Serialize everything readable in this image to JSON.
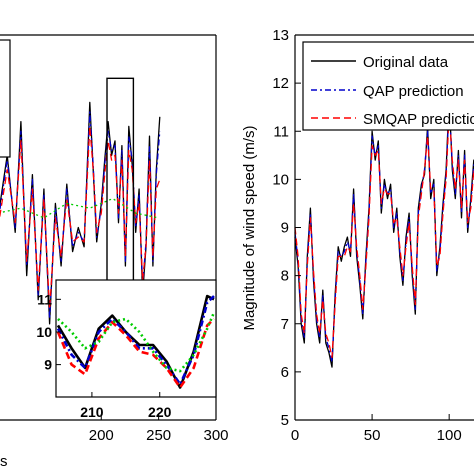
{
  "chart_data": [
    {
      "type": "line",
      "xlabel_fragment": "s",
      "xlim": [
        110,
        300
      ],
      "ylim": [
        5,
        13
      ],
      "xticks": [
        "200",
        "250",
        "300"
      ],
      "zoom_box": {
        "x": [
          205,
          228
        ],
        "y": [
          6.9,
          12.1
        ]
      },
      "series": [
        {
          "key": "orig",
          "color": "#000000",
          "dash": "solid",
          "x": [
            110,
            118,
            125,
            130,
            135,
            140,
            145,
            150,
            155,
            160,
            165,
            170,
            175,
            180,
            185,
            190,
            193,
            196,
            200,
            203,
            206,
            209,
            212,
            215,
            218,
            221,
            224,
            227,
            230,
            233,
            236,
            239,
            242,
            245,
            248,
            251
          ],
          "y": [
            9.2,
            10.5,
            8.9,
            11.2,
            8.0,
            10.1,
            7.5,
            9.8,
            7.0,
            9.5,
            8.2,
            9.9,
            8.5,
            9.0,
            8.6,
            11.6,
            10.2,
            8.7,
            9.5,
            10.4,
            11.2,
            10.5,
            10.8,
            9.1,
            10.7,
            8.2,
            11.1,
            10.3,
            8.9,
            9.8,
            7.6,
            8.6,
            10.9,
            8.2,
            10.2,
            11.3
          ]
        },
        {
          "key": "qap",
          "color": "#0000cc",
          "dash": "6,3,2,3",
          "x": [
            110,
            118,
            125,
            130,
            135,
            140,
            145,
            150,
            155,
            160,
            165,
            170,
            175,
            180,
            185,
            190,
            193,
            196,
            200,
            203,
            206,
            209,
            212,
            215,
            218,
            221,
            224,
            227,
            230,
            233,
            236,
            239,
            242,
            245,
            248,
            251
          ],
          "y": [
            9.1,
            10.4,
            9.0,
            11.0,
            8.2,
            10.0,
            7.6,
            9.7,
            7.1,
            9.4,
            8.3,
            9.8,
            8.6,
            8.9,
            8.7,
            11.4,
            10.3,
            8.8,
            9.4,
            10.3,
            11.0,
            10.6,
            10.7,
            9.2,
            10.6,
            8.3,
            10.9,
            10.4,
            9.0,
            9.7,
            7.8,
            8.7,
            10.7,
            8.3,
            10.1,
            11.0
          ]
        },
        {
          "key": "smqap",
          "color": "#ff0000",
          "dash": "7,4",
          "x": [
            110,
            118,
            125,
            130,
            135,
            140,
            145,
            150,
            155,
            160,
            165,
            170,
            175,
            180,
            185,
            190,
            193,
            196,
            200,
            203,
            206,
            209,
            212,
            215,
            218,
            221,
            224,
            227,
            230,
            233,
            236,
            239,
            242,
            245,
            248,
            251
          ],
          "y": [
            9.0,
            10.2,
            9.1,
            10.8,
            8.3,
            9.8,
            7.7,
            9.6,
            7.3,
            9.2,
            8.4,
            9.6,
            8.7,
            8.8,
            8.7,
            11.1,
            10.2,
            8.9,
            9.3,
            10.1,
            10.8,
            10.4,
            10.5,
            9.3,
            10.4,
            8.4,
            10.6,
            10.2,
            9.1,
            9.5,
            7.9,
            8.6,
            10.4,
            8.4,
            9.8,
            10.0
          ]
        },
        {
          "key": "green",
          "color": "#00cc00",
          "dash": "2,3",
          "x": [
            110,
            130,
            150,
            170,
            190,
            210,
            230,
            250
          ],
          "y": [
            9.3,
            9.4,
            9.2,
            9.5,
            9.4,
            9.6,
            9.3,
            9.2
          ]
        }
      ],
      "inset": {
        "xlim": [
          205,
          228
        ],
        "ylim": [
          8.1,
          11.5
        ],
        "xticks": [
          "210",
          "220"
        ],
        "yticks": [
          "9",
          "10",
          "11"
        ],
        "series": [
          {
            "key": "orig",
            "color": "#000000",
            "dash": "solid",
            "x": [
              205,
              207,
              209,
              211,
              213,
              215,
              217,
              219,
              221,
              223,
              225,
              227,
              228
            ],
            "y": [
              10.2,
              9.5,
              8.9,
              10.1,
              10.5,
              10.0,
              9.6,
              9.6,
              9.1,
              8.3,
              9.4,
              11.1,
              11.0
            ]
          },
          {
            "key": "qap",
            "color": "#0000cc",
            "dash": "6,3,2,3",
            "x": [
              205,
              207,
              209,
              211,
              213,
              215,
              217,
              219,
              221,
              223,
              225,
              227,
              228
            ],
            "y": [
              10.1,
              9.3,
              8.9,
              10.0,
              10.4,
              10.0,
              9.5,
              9.5,
              9.0,
              8.4,
              9.3,
              10.9,
              11.1
            ]
          },
          {
            "key": "smqap",
            "color": "#ff0000",
            "dash": "7,4",
            "x": [
              205,
              207,
              209,
              211,
              213,
              215,
              217,
              219,
              221,
              223,
              225,
              227,
              228
            ],
            "y": [
              10.0,
              9.0,
              8.7,
              9.8,
              10.3,
              9.9,
              9.4,
              9.3,
              8.9,
              8.3,
              8.9,
              10.2,
              10.4
            ]
          },
          {
            "key": "green",
            "color": "#00cc00",
            "dash": "2,3",
            "x": [
              205,
              207,
              209,
              211,
              213,
              215,
              217,
              219,
              221,
              223,
              225,
              227,
              228
            ],
            "y": [
              10.4,
              10.0,
              9.5,
              9.7,
              10.3,
              10.4,
              10.0,
              9.4,
              8.9,
              8.8,
              9.3,
              10.1,
              10.6
            ]
          }
        ]
      }
    },
    {
      "type": "line",
      "xlim": [
        0,
        120
      ],
      "ylim": [
        5,
        13
      ],
      "xticks": [
        "0",
        "50",
        "100"
      ],
      "yticks": [
        "5",
        "6",
        "7",
        "8",
        "9",
        "10",
        "11",
        "12",
        "13"
      ],
      "ylabel": "Magnitude of wind speed (m/s)",
      "legend": {
        "placement": "top-right",
        "entries": [
          "Original data",
          "QAP prediction",
          "SMQAP prediction"
        ]
      },
      "series": [
        {
          "name": "Original data",
          "color": "#000000",
          "dash": "solid",
          "x": [
            0,
            2,
            4,
            6,
            8,
            10,
            12,
            14,
            16,
            18,
            20,
            22,
            24,
            26,
            28,
            30,
            32,
            34,
            36,
            38,
            40,
            42,
            44,
            46,
            48,
            50,
            52,
            54,
            56,
            58,
            60,
            62,
            64,
            66,
            68,
            70,
            72,
            74,
            76,
            78,
            80,
            82,
            84,
            86,
            88,
            90,
            92,
            94,
            96,
            98,
            100,
            102,
            104,
            106,
            108,
            110,
            112,
            114,
            116,
            118,
            120
          ],
          "y": [
            8.8,
            8.2,
            7.0,
            6.6,
            8.4,
            9.4,
            7.9,
            7.0,
            6.6,
            7.7,
            6.6,
            6.4,
            6.1,
            7.6,
            8.6,
            8.3,
            8.6,
            8.8,
            8.4,
            9.8,
            8.4,
            7.8,
            7.1,
            8.4,
            9.4,
            11.0,
            10.4,
            10.8,
            9.3,
            10.0,
            9.6,
            9.9,
            8.9,
            9.4,
            8.4,
            7.8,
            8.8,
            9.3,
            8.0,
            7.2,
            9.4,
            9.9,
            10.1,
            11.1,
            9.6,
            10.0,
            8.0,
            8.6,
            9.5,
            10.2,
            11.7,
            10.2,
            9.6,
            10.6,
            9.2,
            10.6,
            8.9,
            9.6,
            10.4,
            9.4,
            10.2
          ]
        },
        {
          "name": "QAP prediction",
          "color": "#0000cc",
          "dash": "6,3,2,3",
          "x": [
            0,
            2,
            4,
            6,
            8,
            10,
            12,
            14,
            16,
            18,
            20,
            22,
            24,
            26,
            28,
            30,
            32,
            34,
            36,
            38,
            40,
            42,
            44,
            46,
            48,
            50,
            52,
            54,
            56,
            58,
            60,
            62,
            64,
            66,
            68,
            70,
            72,
            74,
            76,
            78,
            80,
            82,
            84,
            86,
            88,
            90,
            92,
            94,
            96,
            98,
            100,
            102,
            104,
            106,
            108,
            110,
            112,
            114,
            116,
            118,
            120
          ],
          "y": [
            8.9,
            8.3,
            7.1,
            6.7,
            8.3,
            9.3,
            8.0,
            7.1,
            6.7,
            7.6,
            6.7,
            6.5,
            6.2,
            7.5,
            8.5,
            8.4,
            8.5,
            8.7,
            8.5,
            9.7,
            8.5,
            7.9,
            7.2,
            8.3,
            9.3,
            10.9,
            10.5,
            10.7,
            9.4,
            9.9,
            9.7,
            9.8,
            9.0,
            9.3,
            8.5,
            7.9,
            8.7,
            9.2,
            8.1,
            7.3,
            9.3,
            9.8,
            10.2,
            11.0,
            9.7,
            9.9,
            8.1,
            8.5,
            9.4,
            10.1,
            11.6,
            10.3,
            9.7,
            10.5,
            9.3,
            10.5,
            9.0,
            9.5,
            10.3,
            9.5,
            10.1
          ]
        },
        {
          "name": "SMQAP prediction",
          "color": "#ff0000",
          "dash": "7,4",
          "x": [
            0,
            2,
            4,
            6,
            8,
            10,
            12,
            14,
            16,
            18,
            20,
            22,
            24,
            26,
            28,
            30,
            32,
            34,
            36,
            38,
            40,
            42,
            44,
            46,
            48,
            50,
            52,
            54,
            56,
            58,
            60,
            62,
            64,
            66,
            68,
            70,
            72,
            74,
            76,
            78,
            80,
            82,
            84,
            86,
            88,
            90,
            92,
            94,
            96,
            98,
            100,
            102,
            104,
            106,
            108,
            110,
            112,
            114,
            116,
            118,
            120
          ],
          "y": [
            9.0,
            8.4,
            7.2,
            6.8,
            8.2,
            9.2,
            8.1,
            7.2,
            6.8,
            7.5,
            6.8,
            6.6,
            6.3,
            7.4,
            8.4,
            8.4,
            8.4,
            8.6,
            8.5,
            9.5,
            8.6,
            8.0,
            7.3,
            8.2,
            9.2,
            10.7,
            10.5,
            10.6,
            9.5,
            9.8,
            9.7,
            9.7,
            9.1,
            9.2,
            8.6,
            8.0,
            8.6,
            9.1,
            8.2,
            7.4,
            9.2,
            9.7,
            10.2,
            10.9,
            9.8,
            9.8,
            8.2,
            8.4,
            9.3,
            10.0,
            11.4,
            10.4,
            9.8,
            10.4,
            9.4,
            10.4,
            9.1,
            9.4,
            10.2,
            9.6,
            10.0
          ]
        }
      ]
    }
  ]
}
